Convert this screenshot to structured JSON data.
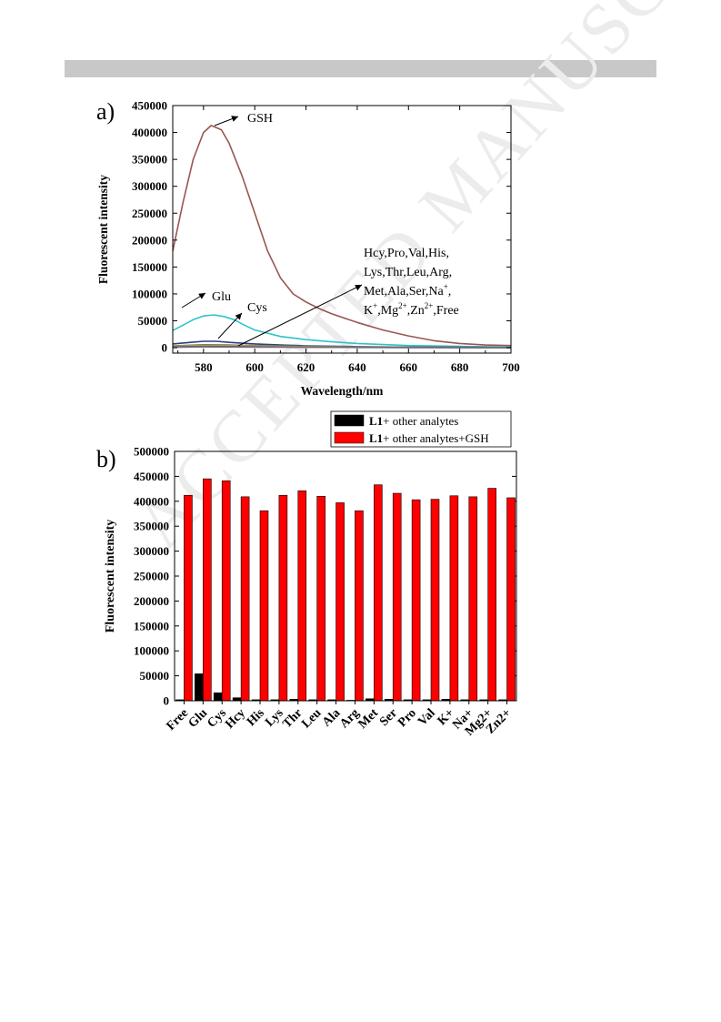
{
  "watermark": "ACCEPTED MANUSCRIPT",
  "chart_data": [
    {
      "type": "line",
      "panel_label": "a)",
      "xlabel": "Wavelength/nm",
      "ylabel": "Fluorescent intensity",
      "xlim": [
        568,
        700
      ],
      "ylim": [
        -10000,
        450000
      ],
      "xticks": [
        580,
        600,
        620,
        640,
        660,
        680,
        700
      ],
      "yticks": [
        0,
        50000,
        100000,
        150000,
        200000,
        250000,
        300000,
        350000,
        400000,
        450000
      ],
      "annotations": {
        "gsh": "GSH",
        "glu": "Glu",
        "cys": "Cys",
        "others_lines": [
          "Hcy,Pro,Val,His,",
          "Lys,Thr,Leu,Arg,",
          "Met,Ala,Ser,Na",
          "K",
          "Mg",
          "Zn",
          "Free"
        ],
        "others_sup": [
          "+",
          "+",
          "2+",
          "2+"
        ]
      },
      "series": [
        {
          "color": "#9a5550",
          "x": [
            568,
            572,
            576,
            580,
            583,
            587,
            590,
            595,
            600,
            605,
            610,
            615,
            620,
            625,
            630,
            640,
            650,
            660,
            670,
            680,
            690,
            700
          ],
          "y": [
            180000,
            270000,
            350000,
            400000,
            413000,
            405000,
            380000,
            320000,
            250000,
            180000,
            130000,
            100000,
            85000,
            73000,
            63000,
            47000,
            33000,
            22000,
            13000,
            8000,
            5000,
            4000
          ]
        },
        {
          "color": "#2ec4cc",
          "x": [
            568,
            572,
            576,
            580,
            584,
            588,
            592,
            596,
            600,
            610,
            620,
            630,
            640,
            660,
            680,
            700
          ],
          "y": [
            32000,
            42000,
            52000,
            59000,
            61000,
            58000,
            52000,
            42000,
            33000,
            21000,
            15000,
            11000,
            8000,
            4000,
            2500,
            1500
          ]
        },
        {
          "color": "#2b3d8e",
          "x": [
            568,
            575,
            580,
            585,
            590,
            600,
            610,
            620,
            640,
            660,
            680,
            700
          ],
          "y": [
            7000,
            10000,
            12000,
            12000,
            10000,
            7000,
            5000,
            3500,
            2000,
            1200,
            800,
            500
          ]
        },
        {
          "color": "#5f8a2e",
          "x": [
            568,
            580,
            590,
            600,
            620,
            640,
            660,
            680,
            700
          ],
          "y": [
            3500,
            5500,
            5000,
            4000,
            2500,
            1500,
            800,
            500,
            300
          ]
        },
        {
          "color": "#c0a060",
          "x": [
            568,
            580,
            590,
            600,
            620,
            640,
            660,
            680,
            700
          ],
          "y": [
            2500,
            4000,
            3800,
            3000,
            2000,
            1200,
            700,
            400,
            200
          ]
        },
        {
          "color": "#8a3fa0",
          "x": [
            568,
            580,
            590,
            600,
            620,
            640,
            660,
            680,
            700
          ],
          "y": [
            1500,
            2500,
            2300,
            1800,
            1200,
            800,
            500,
            300,
            200
          ]
        },
        {
          "color": "#707070",
          "x": [
            568,
            580,
            590,
            600,
            620,
            640,
            660,
            680,
            700
          ],
          "y": [
            800,
            1500,
            1400,
            1100,
            800,
            500,
            300,
            200,
            100
          ]
        }
      ]
    },
    {
      "type": "bar",
      "panel_label": "b)",
      "ylabel": "Fluorescent intensity",
      "ylim": [
        0,
        500000
      ],
      "yticks": [
        0,
        50000,
        100000,
        150000,
        200000,
        250000,
        300000,
        350000,
        400000,
        450000,
        500000
      ],
      "categories": [
        "Free",
        "Glu",
        "Cys",
        "Hcy",
        "His",
        "Lys",
        "Thr",
        "Leu",
        "Ala",
        "Arg",
        "Met",
        "Ser",
        "Pro",
        "Val",
        "K+",
        "Na+",
        "Mg2+",
        "Zn2+"
      ],
      "legend": {
        "prefix": "L1",
        "entries": [
          "+ other analytes",
          "+ other analytes+GSH"
        ]
      },
      "series": [
        {
          "color": "#000000",
          "values": [
            2000,
            54000,
            16000,
            6000,
            2000,
            2000,
            3000,
            2000,
            2000,
            1000,
            4000,
            3000,
            2000,
            2000,
            3000,
            2000,
            2000,
            2000
          ]
        },
        {
          "color": "#ff0000",
          "values": [
            412000,
            445000,
            441000,
            409000,
            381000,
            412000,
            421000,
            410000,
            397000,
            381000,
            433000,
            416000,
            403000,
            404000,
            411000,
            409000,
            426000,
            407000
          ]
        }
      ]
    }
  ]
}
